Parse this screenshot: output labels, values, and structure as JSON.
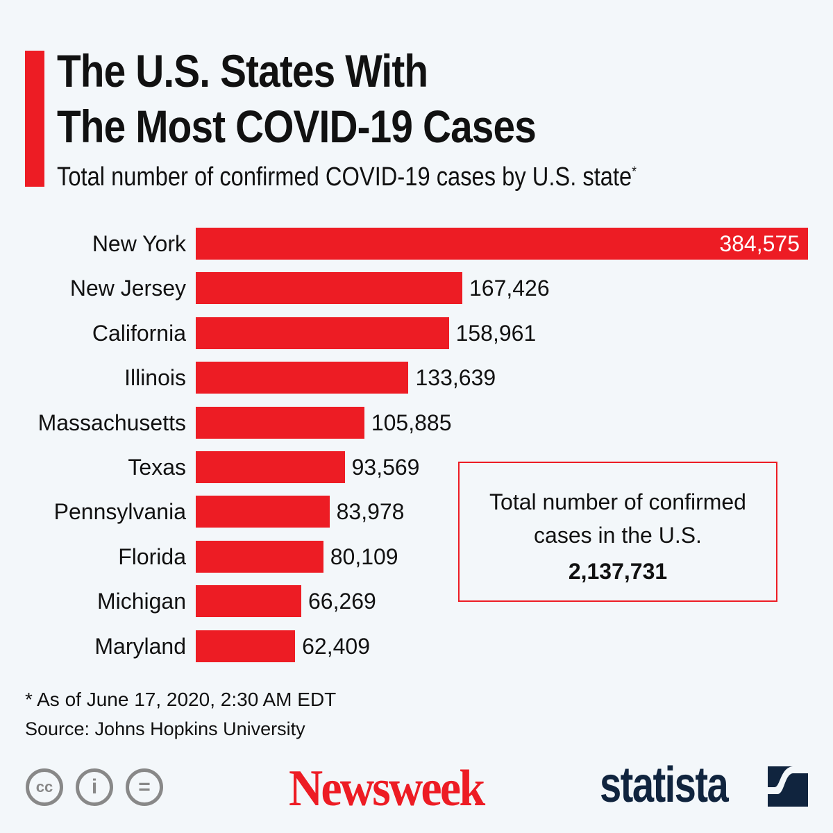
{
  "chart_data": {
    "type": "bar",
    "orientation": "horizontal",
    "title": "The U.S. States With The Most COVID-19 Cases",
    "title_lines": [
      "The U.S. States With",
      "The Most COVID-19 Cases"
    ],
    "subtitle": "Total number of confirmed COVID-19 cases by U.S. state",
    "subtitle_mark": "*",
    "categories": [
      "New York",
      "New Jersey",
      "California",
      "Illinois",
      "Massachusetts",
      "Texas",
      "Pennsylvania",
      "Florida",
      "Michigan",
      "Maryland"
    ],
    "values": [
      384575,
      167426,
      158961,
      133639,
      105885,
      93569,
      83978,
      80109,
      66269,
      62409
    ],
    "value_labels": [
      "384,575",
      "167,426",
      "158,961",
      "133,639",
      "105,885",
      "93,569",
      "83,978",
      "80,109",
      "66,269",
      "62,409"
    ],
    "bar_color": "#ed1c24",
    "grid": false,
    "legend": "none"
  },
  "callout": {
    "line1": "Total number of confirmed",
    "line2": "cases in the U.S.",
    "value": "2,137,731"
  },
  "footnote": "* As of June 17, 2020, 2:30 AM EDT",
  "source": "Source: Johns Hopkins University",
  "license_icons": [
    "cc-icon",
    "by-icon",
    "nd-icon"
  ],
  "license_glyphs": [
    "cc",
    "i",
    "="
  ],
  "logos": {
    "newsweek": "Newsweek",
    "statista": "statista"
  },
  "colors": {
    "accent": "#ed1c24",
    "background": "#f3f7fa",
    "statista": "#10243e",
    "license": "#888888"
  }
}
